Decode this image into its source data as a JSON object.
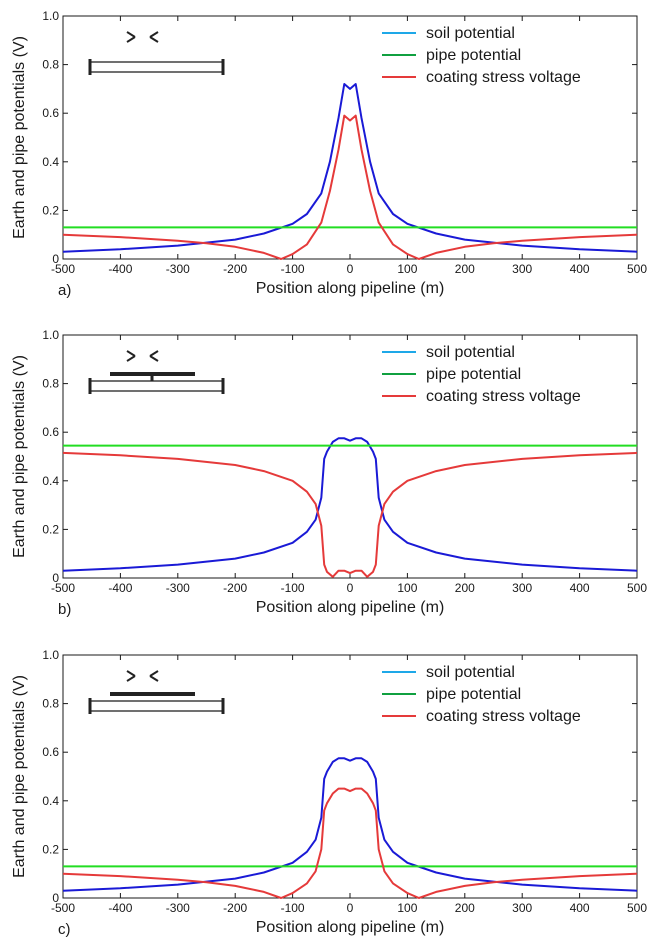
{
  "x_axis_label": "Position along pipeline (m)",
  "y_axis_label": "Earth and pipe potentials (V)",
  "legend": [
    "soil potential",
    "pipe potential",
    "coating stress voltage"
  ],
  "colors": {
    "soil": "#1a1ad6",
    "soil_legend": "#1ea8e8",
    "pipe": "#22dd22",
    "pipe_legend": "#10a040",
    "coating": "#e53a3a",
    "axis": "#1a1a1a"
  },
  "chart_data": [
    {
      "type": "line",
      "panel_label": "a)",
      "xlim": [
        -500,
        500
      ],
      "ylim": [
        0,
        1.0
      ],
      "x_ticks": [
        "-500",
        "-400",
        "-300",
        "-200",
        "-100",
        "0",
        "100",
        "200",
        "300",
        "400",
        "500"
      ],
      "y_ticks": [
        "0",
        "0.2",
        "0.4",
        "0.6",
        "0.8",
        "1.0"
      ],
      "inset_icon": "pipe-only",
      "series": [
        {
          "name": "soil potential",
          "x": [
            -500,
            -400,
            -300,
            -200,
            -150,
            -100,
            -75,
            -50,
            -35,
            -20,
            -10,
            0,
            10,
            20,
            35,
            50,
            75,
            100,
            150,
            200,
            300,
            400,
            500
          ],
          "y": [
            0.03,
            0.04,
            0.055,
            0.08,
            0.105,
            0.145,
            0.185,
            0.27,
            0.4,
            0.58,
            0.72,
            0.7,
            0.72,
            0.58,
            0.4,
            0.27,
            0.185,
            0.145,
            0.105,
            0.08,
            0.055,
            0.04,
            0.03
          ]
        },
        {
          "name": "pipe potential",
          "x": [
            -500,
            500
          ],
          "y": [
            0.13,
            0.13
          ]
        },
        {
          "name": "coating stress voltage",
          "x": [
            -500,
            -400,
            -300,
            -250,
            -200,
            -150,
            -120,
            -100,
            -75,
            -50,
            -35,
            -20,
            -10,
            0,
            10,
            20,
            35,
            50,
            75,
            100,
            120,
            150,
            200,
            250,
            300,
            400,
            500
          ],
          "y": [
            0.1,
            0.09,
            0.075,
            0.065,
            0.05,
            0.025,
            0.0,
            0.02,
            0.06,
            0.15,
            0.28,
            0.45,
            0.59,
            0.57,
            0.59,
            0.45,
            0.28,
            0.15,
            0.06,
            0.02,
            0.0,
            0.025,
            0.05,
            0.065,
            0.075,
            0.09,
            0.1
          ]
        }
      ]
    },
    {
      "type": "line",
      "panel_label": "b)",
      "xlim": [
        -500,
        500
      ],
      "ylim": [
        0,
        1.0
      ],
      "x_ticks": [
        "-500",
        "-400",
        "-300",
        "-200",
        "-100",
        "0",
        "100",
        "200",
        "300",
        "400",
        "500"
      ],
      "y_ticks": [
        "0",
        "0.2",
        "0.4",
        "0.6",
        "0.8",
        "1.0"
      ],
      "inset_icon": "pipe-with-bonded-conductor",
      "series": [
        {
          "name": "soil potential",
          "x": [
            -500,
            -400,
            -300,
            -200,
            -150,
            -100,
            -75,
            -60,
            -50,
            -45,
            -40,
            -30,
            -20,
            -10,
            0,
            10,
            20,
            30,
            40,
            45,
            50,
            60,
            75,
            100,
            150,
            200,
            300,
            400,
            500
          ],
          "y": [
            0.03,
            0.04,
            0.055,
            0.08,
            0.105,
            0.145,
            0.19,
            0.24,
            0.33,
            0.49,
            0.52,
            0.56,
            0.575,
            0.575,
            0.565,
            0.575,
            0.575,
            0.56,
            0.52,
            0.49,
            0.33,
            0.24,
            0.19,
            0.145,
            0.105,
            0.08,
            0.055,
            0.04,
            0.03
          ]
        },
        {
          "name": "pipe potential",
          "x": [
            -500,
            500
          ],
          "y": [
            0.545,
            0.545
          ]
        },
        {
          "name": "coating stress voltage",
          "x": [
            -500,
            -400,
            -300,
            -200,
            -150,
            -100,
            -75,
            -60,
            -50,
            -45,
            -40,
            -30,
            -20,
            -10,
            0,
            10,
            20,
            30,
            40,
            45,
            50,
            60,
            75,
            100,
            150,
            200,
            300,
            400,
            500
          ],
          "y": [
            0.515,
            0.505,
            0.49,
            0.465,
            0.44,
            0.4,
            0.355,
            0.305,
            0.215,
            0.055,
            0.025,
            0.005,
            0.03,
            0.03,
            0.02,
            0.03,
            0.03,
            0.005,
            0.025,
            0.055,
            0.215,
            0.305,
            0.355,
            0.4,
            0.44,
            0.465,
            0.49,
            0.505,
            0.515
          ]
        }
      ]
    },
    {
      "type": "line",
      "panel_label": "c)",
      "xlim": [
        -500,
        500
      ],
      "ylim": [
        0,
        1.0
      ],
      "x_ticks": [
        "-500",
        "-400",
        "-300",
        "-200",
        "-100",
        "0",
        "100",
        "200",
        "300",
        "400",
        "500"
      ],
      "y_ticks": [
        "0",
        "0.2",
        "0.4",
        "0.6",
        "0.8",
        "1.0"
      ],
      "inset_icon": "pipe-with-separate-conductor",
      "series": [
        {
          "name": "soil potential",
          "x": [
            -500,
            -400,
            -300,
            -200,
            -150,
            -100,
            -75,
            -60,
            -50,
            -45,
            -40,
            -30,
            -20,
            -10,
            0,
            10,
            20,
            30,
            40,
            45,
            50,
            60,
            75,
            100,
            150,
            200,
            300,
            400,
            500
          ],
          "y": [
            0.03,
            0.04,
            0.055,
            0.08,
            0.105,
            0.145,
            0.19,
            0.24,
            0.33,
            0.49,
            0.52,
            0.56,
            0.575,
            0.575,
            0.565,
            0.575,
            0.575,
            0.56,
            0.52,
            0.49,
            0.33,
            0.24,
            0.19,
            0.145,
            0.105,
            0.08,
            0.055,
            0.04,
            0.03
          ]
        },
        {
          "name": "pipe potential",
          "x": [
            -500,
            500
          ],
          "y": [
            0.13,
            0.13
          ]
        },
        {
          "name": "coating stress voltage",
          "x": [
            -500,
            -400,
            -300,
            -250,
            -200,
            -150,
            -120,
            -100,
            -75,
            -60,
            -50,
            -45,
            -40,
            -30,
            -20,
            -10,
            0,
            10,
            20,
            30,
            40,
            45,
            50,
            60,
            75,
            100,
            120,
            150,
            200,
            250,
            300,
            400,
            500
          ],
          "y": [
            0.1,
            0.09,
            0.075,
            0.065,
            0.05,
            0.025,
            0.0,
            0.02,
            0.06,
            0.11,
            0.2,
            0.36,
            0.39,
            0.43,
            0.45,
            0.45,
            0.44,
            0.45,
            0.45,
            0.43,
            0.39,
            0.36,
            0.2,
            0.11,
            0.06,
            0.02,
            0.0,
            0.025,
            0.05,
            0.065,
            0.075,
            0.09,
            0.1
          ]
        }
      ]
    }
  ]
}
